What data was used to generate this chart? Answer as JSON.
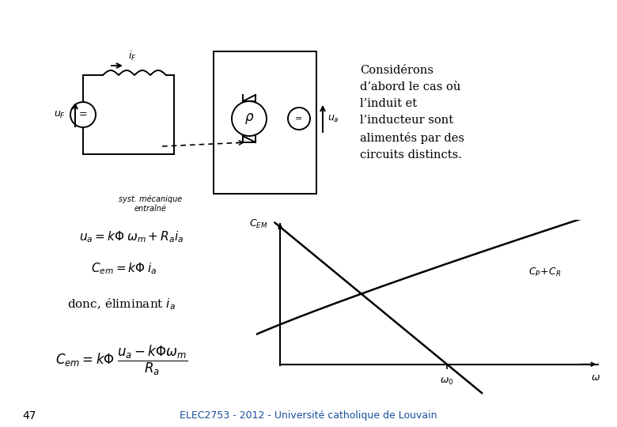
{
  "footer_text": "ELEC2753 - 2012 - Université catholique de Louvain",
  "page_number": "47",
  "description_text": "Considérons\nd’abord le cas où\nl’induit et\nl’inducteur sont\nalimentés par des\ncircuits distincts.",
  "background_color": "#ffffff",
  "text_color": "#000000",
  "footer_color": "#1a4f9c",
  "circuit_lw": 1.4,
  "graph_omega0": 0.55,
  "graph_xlim": [
    -0.08,
    1.05
  ],
  "graph_ylim": [
    -0.25,
    1.1
  ]
}
